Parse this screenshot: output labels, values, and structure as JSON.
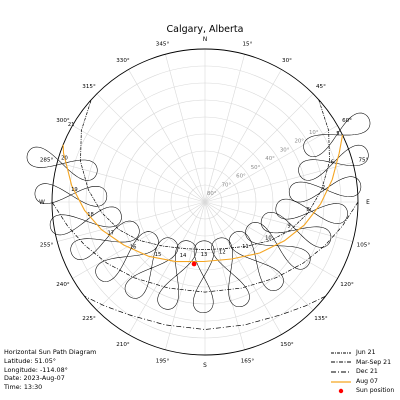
{
  "chart_data": {
    "type": "polar sun path",
    "title": "Calgary, Alberta",
    "cardinal_labels": [
      "N",
      "E",
      "S",
      "W"
    ],
    "azimuth_labels": [
      "15°",
      "30°",
      "45°",
      "60°",
      "75°",
      "105°",
      "120°",
      "135°",
      "150°",
      "165°",
      "195°",
      "210°",
      "225°",
      "240°",
      "255°",
      "285°",
      "300°",
      "315°",
      "330°",
      "345°"
    ],
    "altitude_labels": [
      "10°",
      "20°",
      "30°",
      "40°",
      "50°",
      "60°",
      "70°",
      "80°"
    ],
    "altitude_rings": [
      10,
      20,
      30,
      40,
      50,
      60,
      70,
      80
    ],
    "legend": [
      {
        "name": "Jun 21",
        "style": "dashdot-dense",
        "color": "#000000"
      },
      {
        "name": "Mar-Sep 21",
        "style": "dashdot",
        "color": "#000000"
      },
      {
        "name": "Dec 21",
        "style": "dashdot-sparse",
        "color": "#000000"
      },
      {
        "name": "Aug 07",
        "style": "solid",
        "color": "#f5a623"
      },
      {
        "name": "Sun position",
        "style": "marker",
        "color": "#ff0000"
      }
    ],
    "series": [
      {
        "name": "Jun 21",
        "points": [
          [
            48,
            0
          ],
          [
            60,
            6
          ],
          [
            72,
            13
          ],
          [
            84,
            21
          ],
          [
            96,
            29
          ],
          [
            108,
            37
          ],
          [
            120,
            45
          ],
          [
            136,
            54
          ],
          [
            156,
            60
          ],
          [
            180,
            62
          ],
          [
            204,
            60
          ],
          [
            224,
            54
          ],
          [
            240,
            45
          ],
          [
            252,
            37
          ],
          [
            264,
            29
          ],
          [
            276,
            21
          ],
          [
            288,
            13
          ],
          [
            300,
            6
          ],
          [
            312,
            0
          ]
        ]
      },
      {
        "name": "Mar-Sep 21",
        "points": [
          [
            90,
            0
          ],
          [
            100,
            8
          ],
          [
            110,
            15
          ],
          [
            122,
            22
          ],
          [
            137,
            29
          ],
          [
            157,
            35
          ],
          [
            180,
            37
          ],
          [
            203,
            35
          ],
          [
            223,
            29
          ],
          [
            238,
            22
          ],
          [
            250,
            15
          ],
          [
            260,
            8
          ],
          [
            270,
            0
          ]
        ]
      },
      {
        "name": "Dec 21",
        "points": [
          [
            128,
            0
          ],
          [
            136,
            5
          ],
          [
            146,
            10
          ],
          [
            162,
            14
          ],
          [
            180,
            15
          ],
          [
            198,
            14
          ],
          [
            214,
            10
          ],
          [
            224,
            5
          ],
          [
            232,
            0
          ]
        ]
      },
      {
        "name": "Aug 07",
        "points": [
          [
            64,
            0
          ],
          [
            70,
            6
          ],
          [
            80,
            14
          ],
          [
            91,
            22
          ],
          [
            103,
            30
          ],
          [
            116,
            38
          ],
          [
            133,
            46
          ],
          [
            155,
            53
          ],
          [
            181,
            55
          ],
          [
            206,
            51
          ],
          [
            226,
            44
          ],
          [
            242,
            36
          ],
          [
            255,
            27
          ],
          [
            266,
            19
          ],
          [
            277,
            11
          ],
          [
            289,
            2
          ],
          [
            292,
            0
          ]
        ]
      }
    ],
    "hour_labels": [
      {
        "label": "5",
        "az": 64,
        "alt": 3
      },
      {
        "label": "6",
        "az": 74,
        "alt": 12
      },
      {
        "label": "7",
        "az": 85,
        "alt": 20
      },
      {
        "label": "8",
        "az": 96,
        "alt": 29
      },
      {
        "label": "9",
        "az": 108,
        "alt": 38
      },
      {
        "label": "10",
        "az": 122,
        "alt": 46
      },
      {
        "label": "11",
        "az": 140,
        "alt": 53
      },
      {
        "label": "12",
        "az": 162,
        "alt": 57
      },
      {
        "label": "13",
        "az": 181,
        "alt": 57
      },
      {
        "label": "14",
        "az": 201,
        "alt": 54
      },
      {
        "label": "15",
        "az": 220,
        "alt": 47
      },
      {
        "label": "16",
        "az": 236,
        "alt": 39
      },
      {
        "label": "17",
        "az": 250,
        "alt": 31
      },
      {
        "label": "18",
        "az": 262,
        "alt": 22
      },
      {
        "label": "19",
        "az": 274,
        "alt": 13
      },
      {
        "label": "20",
        "az": 286,
        "alt": 4
      },
      {
        "label": "21",
        "az": 299,
        "alt": 0
      }
    ],
    "analemmas": [
      {
        "hour": 5,
        "az": 63,
        "alt": 3
      },
      {
        "hour": 6,
        "az": 73,
        "alt": 11
      },
      {
        "hour": 7,
        "az": 84,
        "alt": 19
      },
      {
        "hour": 8,
        "az": 95,
        "alt": 27
      },
      {
        "hour": 9,
        "az": 107,
        "alt": 34
      },
      {
        "hour": 10,
        "az": 121,
        "alt": 40
      },
      {
        "hour": 11,
        "az": 139,
        "alt": 44
      },
      {
        "hour": 12,
        "az": 160,
        "alt": 46
      },
      {
        "hour": 13,
        "az": 181,
        "alt": 46
      },
      {
        "hour": 14,
        "az": 201,
        "alt": 44
      },
      {
        "hour": 15,
        "az": 219,
        "alt": 40
      },
      {
        "hour": 16,
        "az": 235,
        "alt": 34
      },
      {
        "hour": 17,
        "az": 249,
        "alt": 27
      },
      {
        "hour": 18,
        "az": 261,
        "alt": 19
      },
      {
        "hour": 19,
        "az": 273,
        "alt": 11
      },
      {
        "hour": 20,
        "az": 285,
        "alt": 3
      }
    ],
    "sun_position": {
      "az": 190,
      "alt": 53
    },
    "info": {
      "title": "Horizontal Sun Path Diagram",
      "latitude": "Latitude: 51.05°",
      "longitude": "Longitude: -114.08°",
      "date": "Date: 2023-Aug-07",
      "time": "Time: 13:30"
    }
  }
}
